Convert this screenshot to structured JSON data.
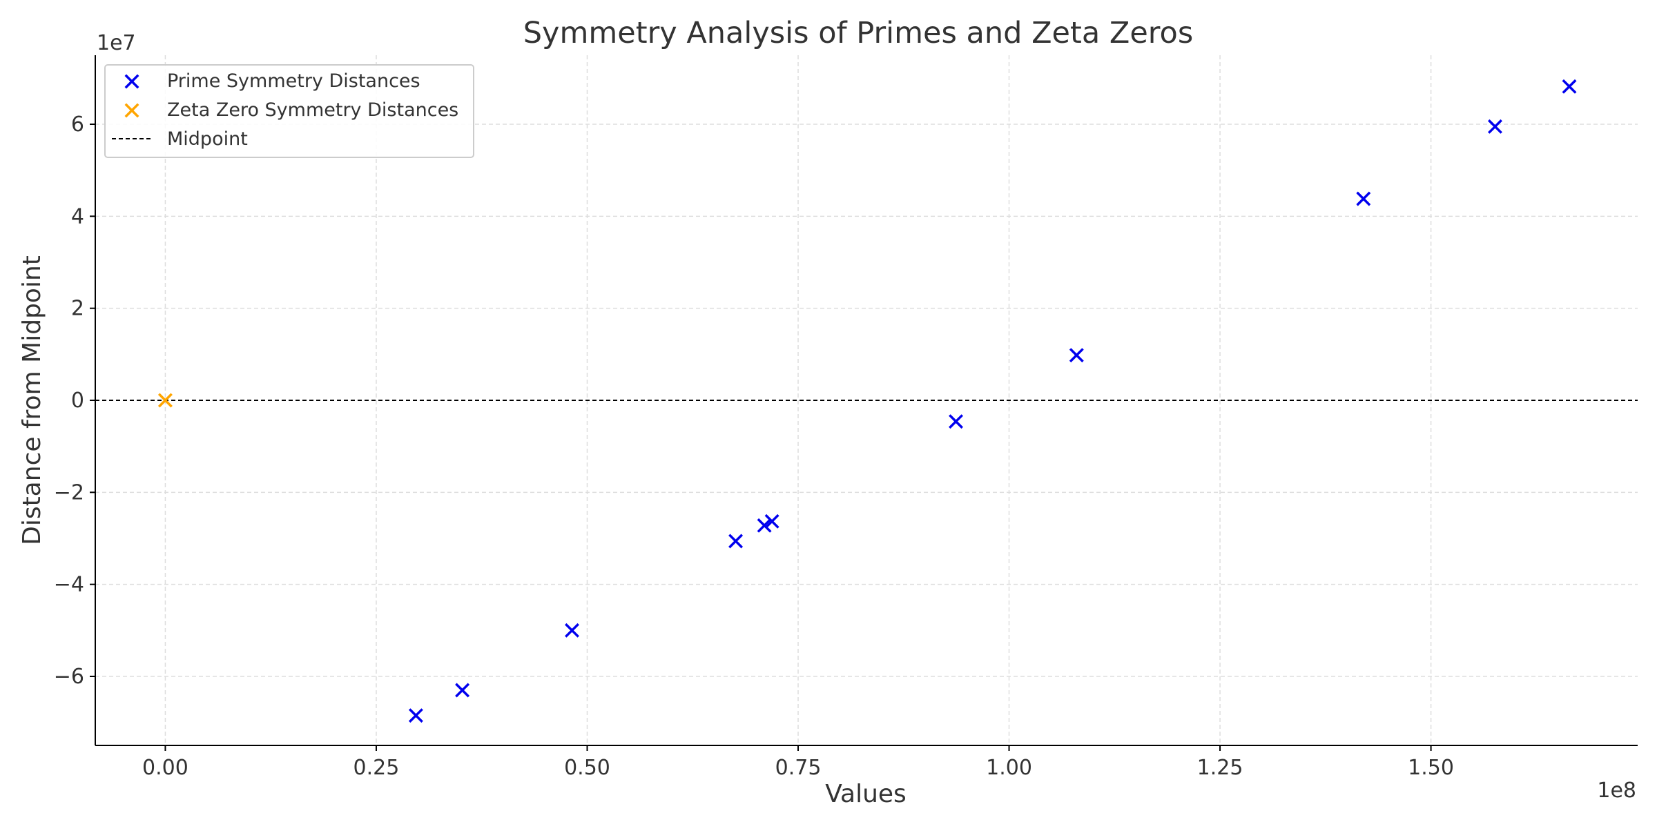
{
  "chart_data": {
    "type": "scatter",
    "title": "Symmetry Analysis of Primes and Zeta Zeros",
    "xlabel": "Values",
    "ylabel": "Distance from Midpoint",
    "x_multiplier": "1e8",
    "y_multiplier": "1e7",
    "xlim": [
      -8300000,
      174500000
    ],
    "ylim": [
      -75000000,
      75000000
    ],
    "xticks": [
      0,
      25000000,
      50000000,
      75000000,
      100000000,
      125000000,
      150000000
    ],
    "xtick_labels": [
      "0.00",
      "0.25",
      "0.50",
      "0.75",
      "1.00",
      "1.25",
      "1.50"
    ],
    "yticks": [
      -60000000,
      -40000000,
      -20000000,
      0,
      20000000,
      40000000,
      60000000
    ],
    "ytick_labels": [
      "−6",
      "−4",
      "−2",
      "0",
      "2",
      "4",
      "6"
    ],
    "grid": true,
    "legend_position": "top-left",
    "legend": [
      {
        "label": "Prime Symmetry Distances",
        "marker": "x",
        "color": "#0000ee"
      },
      {
        "label": "Zeta Zero Symmetry Distances",
        "marker": "x",
        "color": "#ffa500"
      },
      {
        "label": "Midpoint",
        "marker": "dashed-line",
        "color": "#000000"
      }
    ],
    "series": [
      {
        "name": "Prime Symmetry Distances",
        "color": "#0000ee",
        "marker": "x",
        "points": [
          {
            "x": 29700000,
            "y": -68500000
          },
          {
            "x": 35200000,
            "y": -63000000
          },
          {
            "x": 48200000,
            "y": -50000000
          },
          {
            "x": 67600000,
            "y": -30600000
          },
          {
            "x": 71000000,
            "y": -27200000
          },
          {
            "x": 71900000,
            "y": -26300000
          },
          {
            "x": 93700000,
            "y": -4600000
          },
          {
            "x": 108000000,
            "y": 9800000
          },
          {
            "x": 142000000,
            "y": 43800000
          },
          {
            "x": 157600000,
            "y": 59500000
          },
          {
            "x": 166400000,
            "y": 68200000
          }
        ]
      },
      {
        "name": "Zeta Zero Symmetry Distances",
        "color": "#ffa500",
        "marker": "x",
        "points": [
          {
            "x": 0,
            "y": 0
          }
        ]
      }
    ],
    "reference_lines": [
      {
        "name": "Midpoint",
        "orientation": "horizontal",
        "y": 0,
        "style": "dashed",
        "color": "#000000"
      }
    ]
  }
}
